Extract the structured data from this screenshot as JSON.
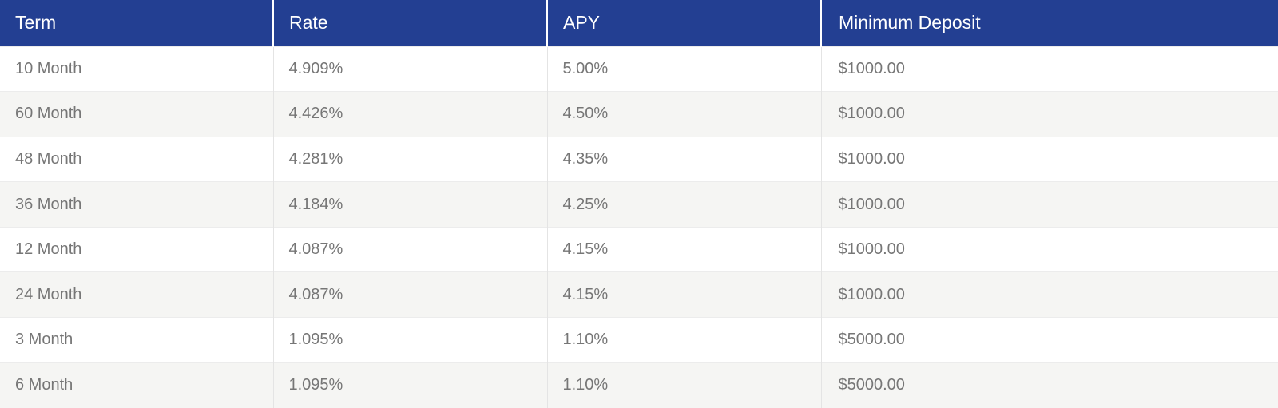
{
  "table": {
    "headers": [
      "Term",
      "Rate",
      "APY",
      "Minimum Deposit"
    ],
    "rows": [
      [
        "10 Month",
        "4.909%",
        "5.00%",
        "$1000.00"
      ],
      [
        "60 Month",
        "4.426%",
        "4.50%",
        "$1000.00"
      ],
      [
        "48 Month",
        "4.281%",
        "4.35%",
        "$1000.00"
      ],
      [
        "36 Month",
        "4.184%",
        "4.25%",
        "$1000.00"
      ],
      [
        "12 Month",
        "4.087%",
        "4.15%",
        "$1000.00"
      ],
      [
        "24 Month",
        "4.087%",
        "4.15%",
        "$1000.00"
      ],
      [
        "3 Month",
        "1.095%",
        "1.10%",
        "$5000.00"
      ],
      [
        "6 Month",
        "1.095%",
        "1.10%",
        "$5000.00"
      ]
    ]
  },
  "colors": {
    "header_background": "#233f92",
    "header_text": "#ffffff",
    "body_text": "#767676",
    "stripe_background": "#f5f5f3"
  }
}
